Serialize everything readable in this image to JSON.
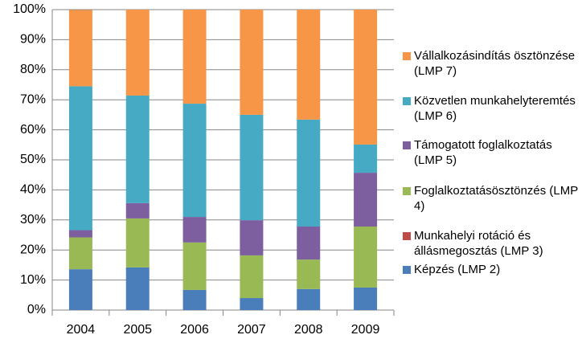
{
  "chart_data": {
    "type": "bar",
    "stacked": true,
    "categories": [
      "2004",
      "2005",
      "2006",
      "2007",
      "2008",
      "2009"
    ],
    "series": [
      {
        "name": "Képzés (LMP 2)",
        "color": "#4a7ebb",
        "values": [
          13.6,
          14.2,
          6.7,
          4.0,
          7.0,
          7.5
        ]
      },
      {
        "name": "Munkahelyi rotáció és állásmegosztás (LMP 3)",
        "color": "#be4b48",
        "values": [
          0,
          0,
          0,
          0,
          0,
          0
        ]
      },
      {
        "name": "Foglalkoztatásösztönzés (LMP 4)",
        "color": "#98b954",
        "values": [
          10.6,
          16.3,
          15.8,
          14.2,
          9.8,
          20.3
        ]
      },
      {
        "name": "Támogatott foglalkoztatás (LMP 5)",
        "color": "#7d5fa0",
        "values": [
          2.4,
          5.1,
          8.5,
          11.7,
          11.0,
          17.9
        ]
      },
      {
        "name": "Közvetlen munkahelyteremtés (LMP 6)",
        "color": "#46aac5",
        "values": [
          47.9,
          35.8,
          37.7,
          35.1,
          35.6,
          9.4
        ]
      },
      {
        "name": "Vállalkozásindítás ösztönzése (LMP 7)",
        "color": "#f79646",
        "values": [
          25.4,
          28.6,
          31.3,
          35.0,
          36.6,
          44.9
        ]
      }
    ],
    "ylim": [
      0,
      100
    ],
    "yticks": [
      {
        "value": 0,
        "label": "0%"
      },
      {
        "value": 10,
        "label": "10%"
      },
      {
        "value": 20,
        "label": "20%"
      },
      {
        "value": 30,
        "label": "30%"
      },
      {
        "value": 40,
        "label": "40%"
      },
      {
        "value": 50,
        "label": "50%"
      },
      {
        "value": 60,
        "label": "60%"
      },
      {
        "value": 70,
        "label": "70%"
      },
      {
        "value": 80,
        "label": "80%"
      },
      {
        "value": 90,
        "label": "90%"
      },
      {
        "value": 100,
        "label": "100%"
      }
    ],
    "grid": true,
    "legend": "right"
  }
}
